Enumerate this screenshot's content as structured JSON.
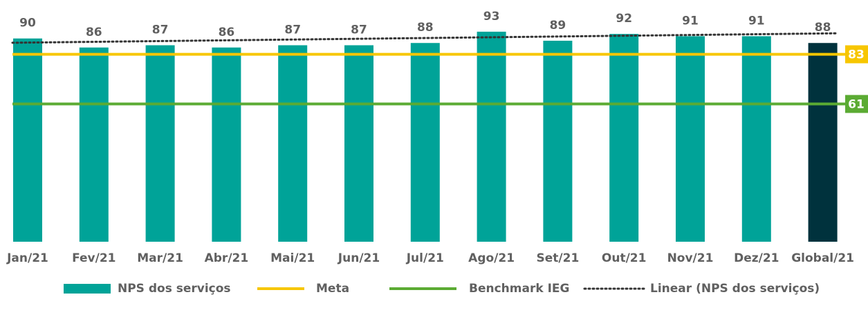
{
  "chart_data": {
    "type": "bar",
    "categories": [
      "Jan/21",
      "Fev/21",
      "Mar/21",
      "Abr/21",
      "Mai/21",
      "Jun/21",
      "Jul/21",
      "Ago/21",
      "Set/21",
      "Out/21",
      "Nov/21",
      "Dez/21",
      "Global/21"
    ],
    "series": [
      {
        "name": "NPS dos serviços",
        "color": "#00a398",
        "colors": [
          "#00a398",
          "#00a398",
          "#00a398",
          "#00a398",
          "#00a398",
          "#00a398",
          "#00a398",
          "#00a398",
          "#00a398",
          "#00a398",
          "#00a398",
          "#00a398",
          "#00323d"
        ],
        "values": [
          90,
          86,
          87,
          86,
          87,
          87,
          88,
          93,
          89,
          92,
          91,
          91,
          88
        ]
      }
    ],
    "reference_lines": [
      {
        "name": "Meta",
        "color": "#f7c600",
        "value": 83
      },
      {
        "name": "Benchmark IEG",
        "color": "#5bab33",
        "value": 61
      }
    ],
    "trendline": {
      "name": "Linear (NPS dos serviços)",
      "color": "#333333",
      "values": [
        88.1,
        92.3
      ]
    },
    "ylim": [
      0,
      100
    ]
  }
}
